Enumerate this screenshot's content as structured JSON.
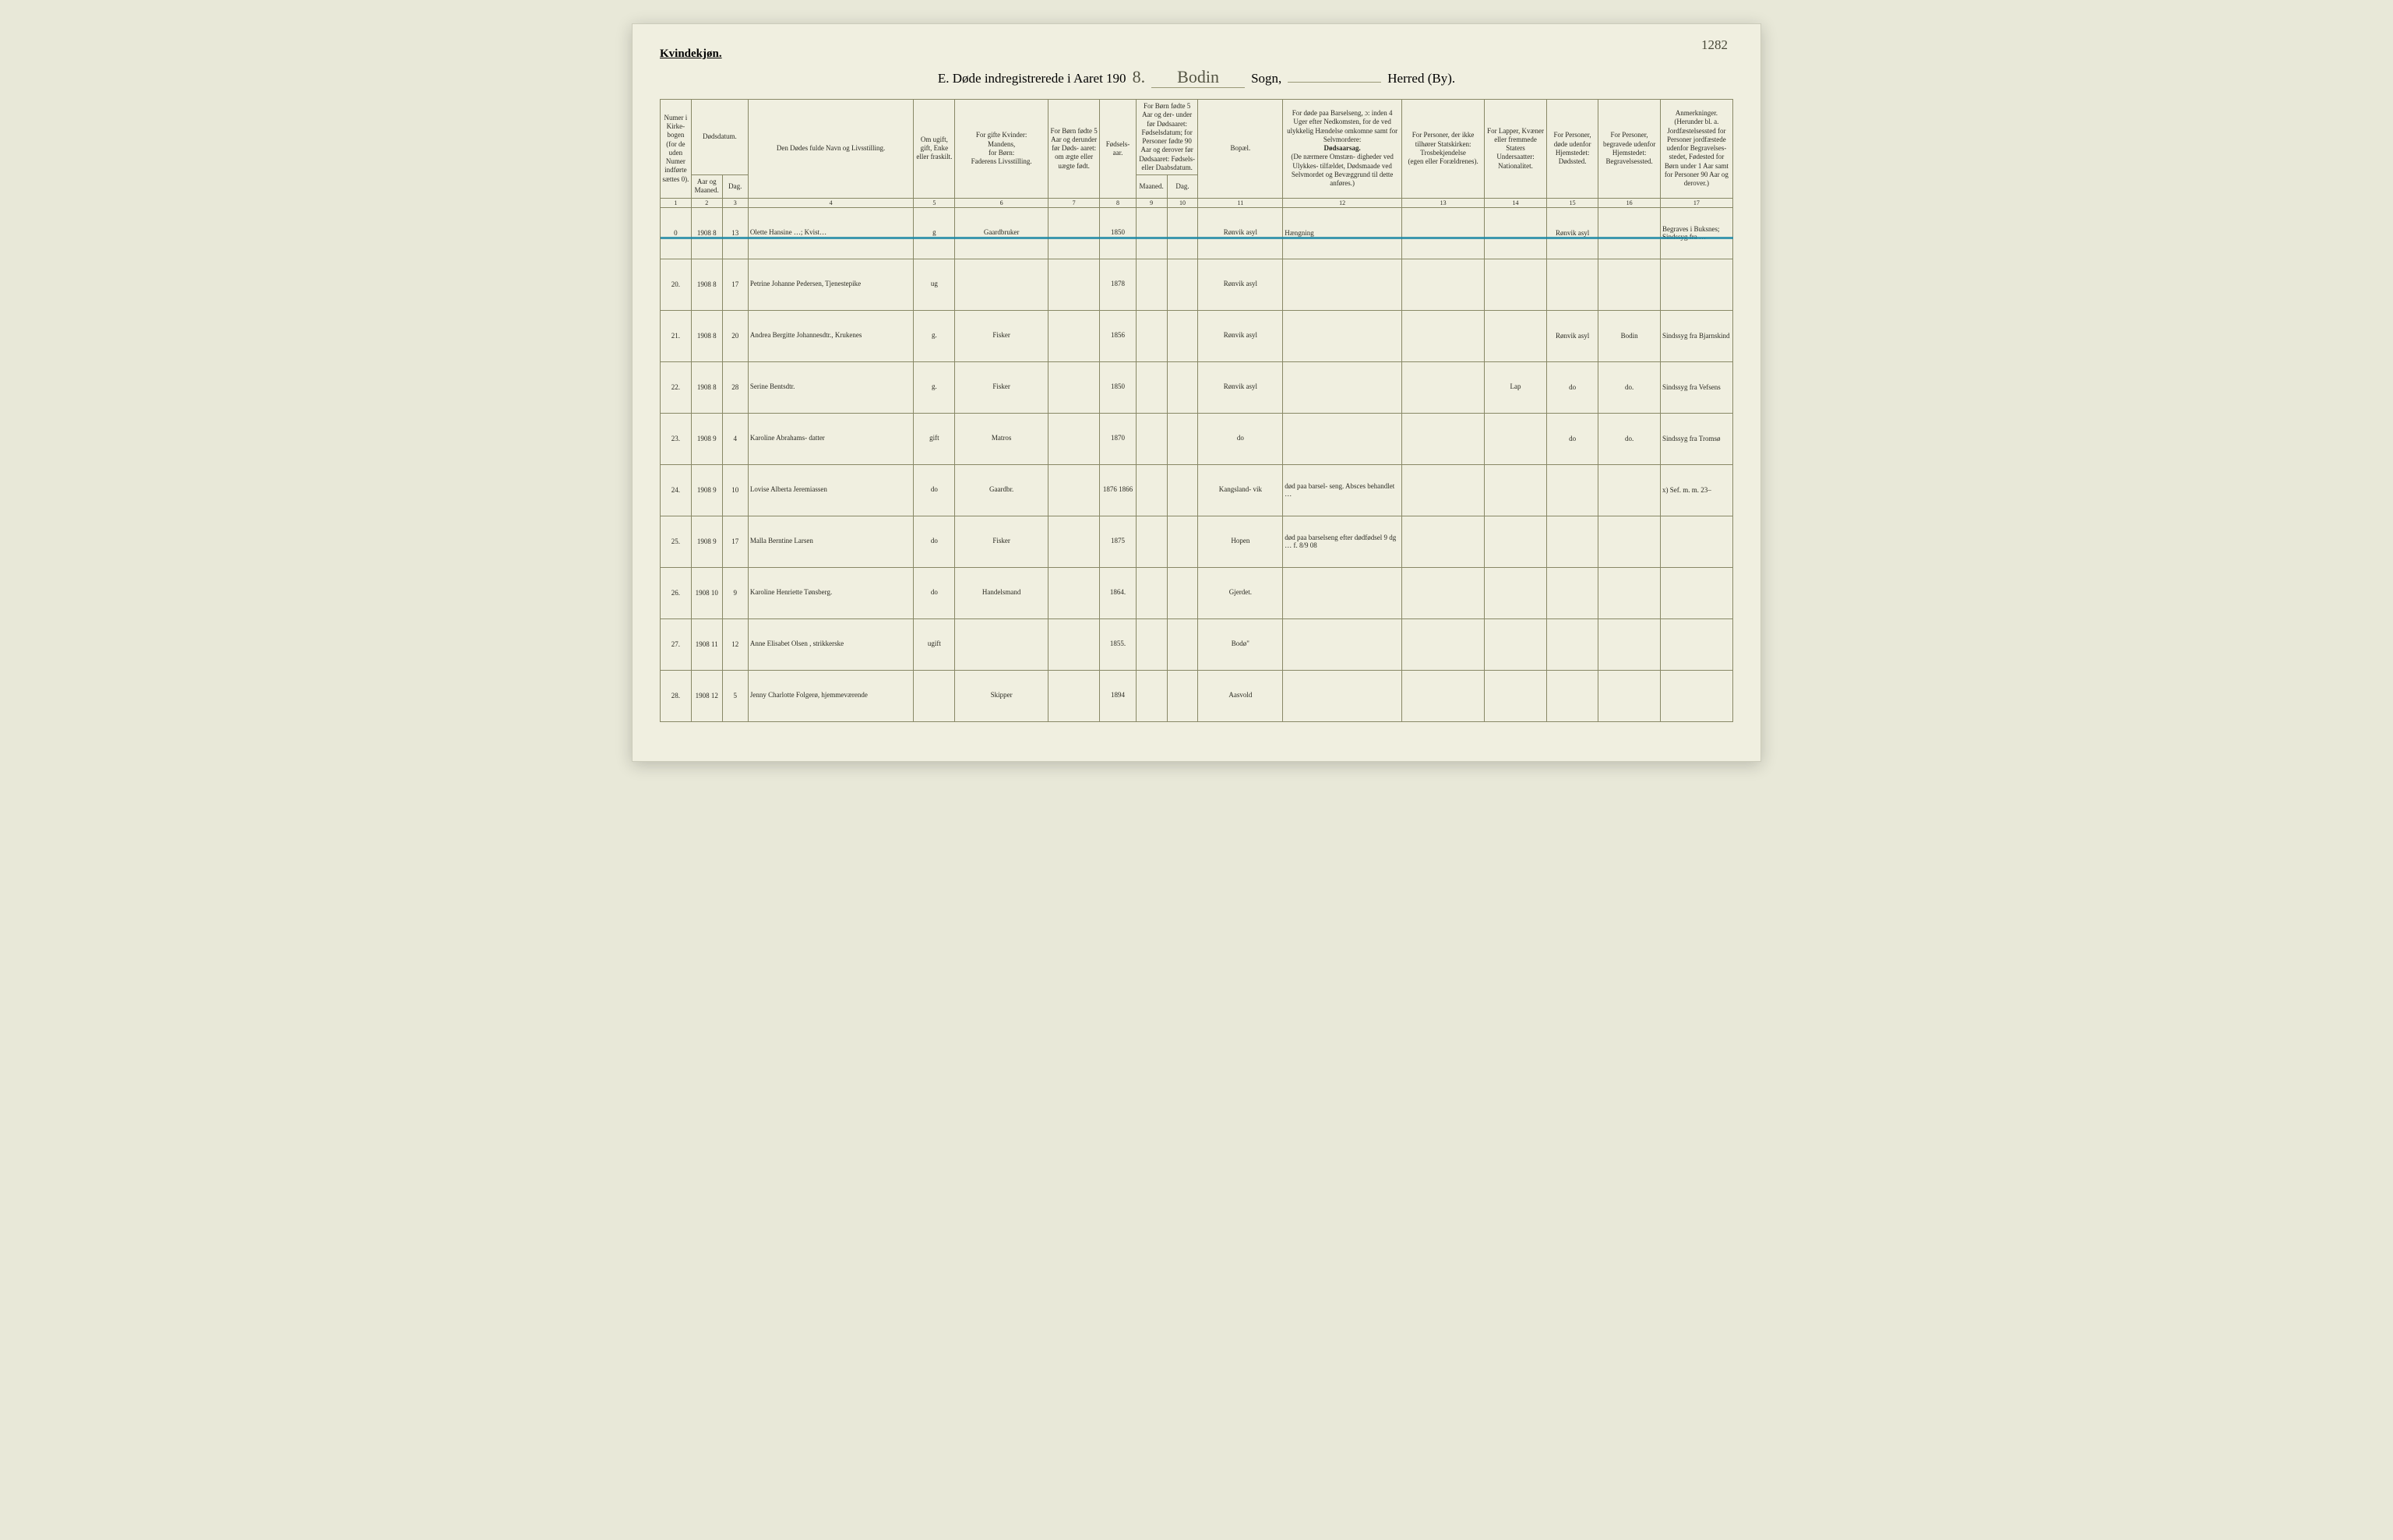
{
  "page_corner_note": "1282",
  "gender_label": "Kvindekjøn.",
  "header": {
    "prefix": "E.  Døde indregistrerede i Aaret 190",
    "year_suffix": "8.",
    "sogn_hw": "Bodin",
    "sogn_label": "Sogn,",
    "herred_hw": "",
    "herred_label": "Herred (By)."
  },
  "colwidths_pct": [
    3.0,
    3.0,
    2.5,
    16.0,
    4.0,
    9.0,
    5.0,
    3.5,
    3.0,
    3.0,
    8.2,
    11.5,
    8.0,
    6.0,
    5.0,
    6.0,
    7.0
  ],
  "columns": {
    "c1": "Numer i Kirke- bogen (for de uden Numer indførte sættes 0).",
    "c2_top": "Dødsdatum.",
    "c2a": "Aar og Maaned.",
    "c2b": "Dag.",
    "c4": "Den Dødes fulde Navn og Livsstilling.",
    "c5": "Om ugift, gift, Enke eller fraskilt.",
    "c6_top": "For gifte Kvinder:",
    "c6_mid": "Mandens,",
    "c6_mid2": "for Børn:",
    "c6_bot": "Faderens Livsstilling.",
    "c7": "For Børn fødte 5 Aar og derunder før Døds- aaret: om ægte eller uægte født.",
    "c8": "Fødsels- aar.",
    "c9_top": "For Børn fødte 5 Aar og der- under før Dødsaaret: Fødselsdatum; for Personer fødte 90 Aar og derover før Dødsaaret: Fødsels- eller Daabsdatum.",
    "c9a": "Maaned.",
    "c9b": "Dag.",
    "c11": "Bopæl.",
    "c12_top": "For døde paa Barselseng, ɔ: inden 4 Uger efter Nedkomsten, for de ved ulykkelig Hændelse omkomne samt for Selvmordere:",
    "c12_mid": "Dødsaarsag.",
    "c12_bot": "(De nærmere Omstæn- digheder ved Ulykkes- tilfældet, Dødsmaade ved Selvmordet og Bevæggrund til dette anføres.)",
    "c13_top": "For Personer, der ikke tilhører Statskirken:",
    "c13_mid": "Trosbekjendelse",
    "c13_bot": "(egen eller Forældrenes).",
    "c14_top": "For Lapper, Kvæner eller fremmede Staters Undersaatter:",
    "c14_bot": "Nationalitet.",
    "c15_top": "For Personer, døde udenfor Hjemstedet:",
    "c15_bot": "Dødssted.",
    "c16_top": "For Personer, begravede udenfor Hjemstedet:",
    "c16_bot": "Begravelsessted.",
    "c17_top": "Anmerkninger.",
    "c17_bot": "(Herunder bl. a. Jordfæstelsessted for Personer jordfæstede udenfor Begravelses- stedet, Fødested for Børn under 1 Aar samt for Personer 90 Aar og derover.)"
  },
  "colnums": [
    "1",
    "2",
    "3",
    "4",
    "5",
    "6",
    "7",
    "8",
    "9",
    "10",
    "11",
    "12",
    "13",
    "14",
    "15",
    "16",
    "17"
  ],
  "rows": [
    {
      "num": "0",
      "year_mo": "1908 8",
      "day": "13",
      "name": "Olette Hansine …; Kvist…",
      "status": "g",
      "father": "Gaardbruker",
      "legit": "",
      "birth": "1850",
      "bm": "",
      "bd": "",
      "bopael": "Rønvik asyl",
      "cause": "Hængning",
      "c13": "",
      "c14": "",
      "c15": "Rønvik asyl",
      "c16": "",
      "remarks": "Begraves i Buksnes; Sindssyg fra …",
      "crossed": true
    },
    {
      "num": "20.",
      "year_mo": "1908 8",
      "day": "17",
      "name": "Petrine Johanne Pedersen, Tjenestepike",
      "status": "ug",
      "father": "",
      "legit": "",
      "birth": "1878",
      "bm": "",
      "bd": "",
      "bopael": "Rønvik asyl",
      "cause": "",
      "c13": "",
      "c14": "",
      "c15": "",
      "c16": "",
      "remarks": ""
    },
    {
      "num": "21.",
      "year_mo": "1908 8",
      "day": "20",
      "name": "Andrea Bergitte Johannesdtr., Krukenes",
      "status": "g.",
      "father": "Fisker",
      "legit": "",
      "birth": "1856",
      "bm": "",
      "bd": "",
      "bopael": "Rønvik asyl",
      "cause": "",
      "c13": "",
      "c14": "",
      "c15": "Rønvik asyl",
      "c16": "Bodin",
      "remarks": "Sindssyg fra Bjarnskind"
    },
    {
      "num": "22.",
      "year_mo": "1908 8",
      "day": "28",
      "name": "Serine Bentsdtr.",
      "status": "g.",
      "father": "Fisker",
      "legit": "",
      "birth": "1850",
      "bm": "",
      "bd": "",
      "bopael": "Rønvik asyl",
      "cause": "",
      "c13": "",
      "c14": "Lap",
      "c15": "do",
      "c16": "do.",
      "remarks": "Sindssyg fra Vefsens"
    },
    {
      "num": "23.",
      "year_mo": "1908 9",
      "day": "4",
      "name": "Karoline Abrahams- datter",
      "status": "gift",
      "father": "Matros",
      "legit": "",
      "birth": "1870",
      "bm": "",
      "bd": "",
      "bopael": "do",
      "cause": "",
      "c13": "",
      "c14": "",
      "c15": "do",
      "c16": "do.",
      "remarks": "Sindssyg fra Tromsø"
    },
    {
      "num": "24.",
      "year_mo": "1908 9",
      "day": "10",
      "name": "Lovise Alberta Jeremiassen",
      "status": "do",
      "father": "Gaardbr.",
      "legit": "",
      "birth": "1876 1866",
      "bm": "",
      "bd": "",
      "bopael": "Kangsland- vik",
      "cause": "død paa barsel- seng. Absces behandlet …",
      "c13": "",
      "c14": "",
      "c15": "",
      "c16": "",
      "remarks": "x) Sef. m. m. 23–"
    },
    {
      "num": "25.",
      "year_mo": "1908 9",
      "day": "17",
      "name": "Malla Berntine Larsen",
      "status": "do",
      "father": "Fisker",
      "legit": "",
      "birth": "1875",
      "bm": "",
      "bd": "",
      "bopael": "Hopen",
      "cause": "død paa barselseng efter dødfødsel 9 dg … f. 8/9 08",
      "c13": "",
      "c14": "",
      "c15": "",
      "c16": "",
      "remarks": ""
    },
    {
      "num": "26.",
      "year_mo": "1908 10",
      "day": "9",
      "name": "Karoline Henriette Tønsberg.",
      "status": "do",
      "father": "Handelsmand",
      "legit": "",
      "birth": "1864.",
      "bm": "",
      "bd": "",
      "bopael": "Gjerdet.",
      "cause": "",
      "c13": "",
      "c14": "",
      "c15": "",
      "c16": "",
      "remarks": ""
    },
    {
      "num": "27.",
      "year_mo": "1908 11",
      "day": "12",
      "name": "Anne Elisabet Olsen , strikkerske",
      "status": "ugift",
      "father": "",
      "legit": "",
      "birth": "1855.",
      "bm": "",
      "bd": "",
      "bopael": "Bodø\"",
      "cause": "",
      "c13": "",
      "c14": "",
      "c15": "",
      "c16": "",
      "remarks": ""
    },
    {
      "num": "28.",
      "year_mo": "1908 12",
      "day": "5",
      "name": "Jenny Charlotte Folgerø, hjemmeværende",
      "status": "",
      "father": "Skipper",
      "legit": "",
      "birth": "1894",
      "bm": "",
      "bd": "",
      "bopael": "Aasvold",
      "cause": "",
      "c13": "",
      "c14": "",
      "c15": "",
      "c16": "",
      "remarks": ""
    }
  ]
}
